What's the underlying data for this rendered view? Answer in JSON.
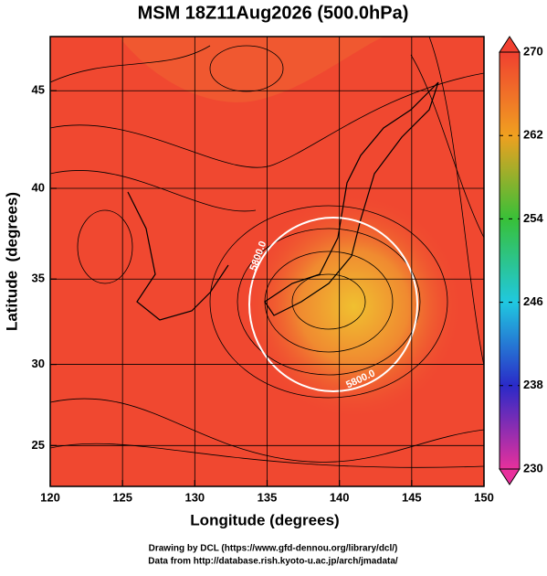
{
  "title": "MSM 18Z11Aug2026 (500.0hPa)",
  "x_label": "Longitude (degrees)",
  "y_label": "Latitude  (degrees)",
  "xlim": [
    120,
    150
  ],
  "xticks": [
    120,
    125,
    130,
    135,
    140,
    145,
    150
  ],
  "ylim": [
    22.4,
    47.6
  ],
  "yticks": [
    25,
    30,
    35,
    40,
    45
  ],
  "projection": "mercator",
  "grid": true,
  "colorbar": {
    "lim": [
      230,
      270
    ],
    "ticks": [
      270,
      262,
      254,
      246,
      238,
      230
    ],
    "colors": [
      "#e8309c",
      "#2a2ac8",
      "#20c8e0",
      "#38c038",
      "#f0a020",
      "#f04030"
    ]
  },
  "contour_labels": [
    "5800.0",
    "5800.0"
  ],
  "credits": [
    "Drawing by DCL (https://www.gfd-dennou.org/library/dcl/)",
    "Data from http://database.rish.kyoto-u.ac.jp/arch/jmadata/"
  ]
}
